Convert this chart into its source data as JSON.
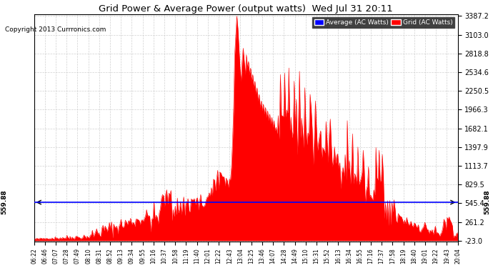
{
  "title": "Grid Power & Average Power (output watts)  Wed Jul 31 20:11",
  "copyright": "Copyright 2013 Currronics.com",
  "background_color": "#ffffff",
  "plot_bg_color": "#ffffff",
  "grid_color": "#cccccc",
  "fill_color": "#ff0000",
  "line_color": "#ff0000",
  "avg_line_color": "#0000ff",
  "avg_value": 559.88,
  "ylim_min": -23.0,
  "ylim_max": 3387.2,
  "yticks": [
    3387.2,
    3103.0,
    2818.8,
    2534.6,
    2250.5,
    1966.3,
    1682.1,
    1397.9,
    1113.7,
    829.5,
    545.4,
    261.2,
    -23.0
  ],
  "legend_labels": [
    "Average (AC Watts)",
    "Grid (AC Watts)"
  ],
  "legend_colors": [
    "#0000ff",
    "#ff0000"
  ],
  "xtick_labels": [
    "06:22",
    "06:46",
    "07:07",
    "07:28",
    "07:49",
    "08:10",
    "08:31",
    "08:52",
    "09:13",
    "09:34",
    "09:55",
    "10:16",
    "10:37",
    "10:58",
    "11:19",
    "11:40",
    "12:01",
    "12:22",
    "12:43",
    "13:04",
    "13:25",
    "13:46",
    "14:07",
    "14:28",
    "14:49",
    "15:10",
    "15:31",
    "15:52",
    "16:13",
    "16:34",
    "16:55",
    "17:16",
    "17:37",
    "17:58",
    "18:19",
    "18:40",
    "19:01",
    "19:22",
    "19:43",
    "20:04"
  ],
  "num_points": 400
}
